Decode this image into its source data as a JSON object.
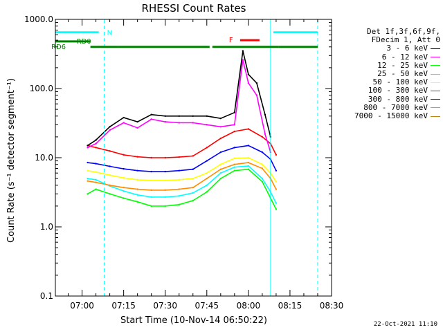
{
  "chart_data": {
    "type": "line",
    "title": "RHESSI Count Rates",
    "xlabel": "Start Time (10-Nov-14 06:50:22)",
    "ylabel": "Count Rate (s⁻¹ detector segment⁻¹)",
    "xlim": [
      "06:50:22",
      "08:30"
    ],
    "ylim": [
      0.1,
      1000.0
    ],
    "yscale": "log",
    "x_ticks": [
      "07:00",
      "07:15",
      "07:30",
      "07:45",
      "08:00",
      "08:15",
      "08:30"
    ],
    "y_ticks": [
      "0.1",
      "1.0",
      "10.0",
      "100.0",
      "1000.0"
    ],
    "legend_position": "top-right",
    "legend_header": [
      "Det 1f,3f,6f,9f,",
      "FDecim 1, Att 0"
    ],
    "series": [
      {
        "name": "3 - 6 keV",
        "color": "#000000",
        "x": [
          "07:02",
          "07:05",
          "07:10",
          "07:15",
          "07:20",
          "07:25",
          "07:30",
          "07:35",
          "07:40",
          "07:45",
          "07:50",
          "07:55",
          "07:58",
          "08:00",
          "08:03",
          "08:06",
          "08:08"
        ],
        "values": [
          15,
          18,
          28,
          38,
          33,
          42,
          40,
          40,
          40,
          40,
          37,
          45,
          350,
          160,
          120,
          42,
          20
        ]
      },
      {
        "name": "6 - 12 keV",
        "color": "#ff00ff",
        "x": [
          "07:02",
          "07:05",
          "07:10",
          "07:15",
          "07:20",
          "07:25",
          "07:30",
          "07:35",
          "07:40",
          "07:45",
          "07:50",
          "07:55",
          "07:58",
          "08:00",
          "08:03",
          "08:06",
          "08:08"
        ],
        "values": [
          14,
          16,
          25,
          32,
          27,
          36,
          33,
          32,
          32,
          30,
          28,
          30,
          260,
          120,
          80,
          22,
          12
        ]
      },
      {
        "name": "12 - 25 keV",
        "color": "#00ff00",
        "x": [
          "07:02",
          "07:05",
          "07:10",
          "07:15",
          "07:20",
          "07:25",
          "07:30",
          "07:35",
          "07:40",
          "07:45",
          "07:50",
          "07:55",
          "08:00",
          "08:05",
          "08:08",
          "08:10"
        ],
        "values": [
          3.0,
          3.5,
          3.0,
          2.6,
          2.3,
          2.0,
          2.0,
          2.1,
          2.4,
          3.2,
          5.0,
          6.5,
          6.8,
          4.5,
          2.6,
          1.8
        ]
      },
      {
        "name": "25 - 50 keV",
        "color": "#00ffff",
        "x": [
          "07:02",
          "07:05",
          "07:10",
          "07:15",
          "07:20",
          "07:25",
          "07:30",
          "07:35",
          "07:40",
          "07:45",
          "07:50",
          "07:55",
          "08:00",
          "08:05",
          "08:08",
          "08:10"
        ],
        "values": [
          5.0,
          4.8,
          3.9,
          3.3,
          2.9,
          2.7,
          2.7,
          2.8,
          3.1,
          4.0,
          6.0,
          7.3,
          7.6,
          5.0,
          3.2,
          2.2
        ]
      },
      {
        "name": "50 - 100 keV",
        "color": "#ffff00",
        "x": [
          "07:02",
          "07:05",
          "07:10",
          "07:15",
          "07:20",
          "07:25",
          "07:30",
          "07:35",
          "07:40",
          "07:45",
          "07:50",
          "07:55",
          "08:00",
          "08:05",
          "08:08",
          "08:10"
        ],
        "values": [
          6.5,
          6.2,
          5.6,
          5.1,
          4.8,
          4.7,
          4.7,
          4.8,
          5.0,
          6.0,
          8.0,
          9.8,
          10.0,
          8.0,
          6.0,
          4.5
        ]
      },
      {
        "name": "100 - 300 keV",
        "color": "#ff0000",
        "x": [
          "07:02",
          "07:05",
          "07:10",
          "07:15",
          "07:20",
          "07:25",
          "07:30",
          "07:35",
          "07:40",
          "07:45",
          "07:50",
          "07:55",
          "08:00",
          "08:05",
          "08:08",
          "08:10"
        ],
        "values": [
          15,
          14,
          12.5,
          11,
          10.3,
          10,
          10,
          10.2,
          10.6,
          14,
          19,
          24,
          26,
          20,
          16,
          11
        ]
      },
      {
        "name": "300 - 800 keV",
        "color": "#0000ff",
        "x": [
          "07:02",
          "07:05",
          "07:10",
          "07:15",
          "07:20",
          "07:25",
          "07:30",
          "07:35",
          "07:40",
          "07:45",
          "07:50",
          "07:55",
          "08:00",
          "08:05",
          "08:08",
          "08:10"
        ],
        "values": [
          8.5,
          8.2,
          7.5,
          6.9,
          6.5,
          6.3,
          6.3,
          6.5,
          6.8,
          9.0,
          12,
          14,
          15,
          12,
          9.5,
          6.5
        ]
      },
      {
        "name": "800 - 7000 keV",
        "color": "#ff8c00",
        "x": [
          "07:02",
          "07:05",
          "07:10",
          "07:15",
          "07:20",
          "07:25",
          "07:30",
          "07:35",
          "07:40",
          "07:45",
          "07:50",
          "07:55",
          "08:00",
          "08:05",
          "08:08",
          "08:10"
        ],
        "values": [
          4.6,
          4.4,
          4.0,
          3.7,
          3.5,
          3.4,
          3.4,
          3.5,
          3.7,
          5.0,
          6.8,
          8.0,
          8.5,
          7.0,
          5.0,
          3.5
        ]
      },
      {
        "name": "7000 - 15000 keV",
        "color": "#b8860b",
        "x": [],
        "values": []
      }
    ],
    "annotations": {
      "N": {
        "label": "N",
        "color": "#00ffff",
        "bars": [
          [
            "06:50:22",
            "07:06"
          ],
          [
            "08:09",
            "08:25"
          ]
        ],
        "dashed_lines": [
          "07:08",
          "08:25"
        ],
        "solid_lines": [
          "06:50:22",
          "08:08"
        ]
      },
      "F": {
        "label": "F",
        "color": "#ff0000",
        "bars": [
          [
            "07:57",
            "08:04"
          ]
        ]
      },
      "RD0": {
        "label": "RD0",
        "color": "#008000",
        "bars": [
          [
            "06:50:22",
            "07:03"
          ]
        ]
      },
      "RD6": {
        "label": "RD6",
        "color": "#008000",
        "bars": [
          [
            "07:03",
            "07:13"
          ],
          [
            "07:13",
            "07:46"
          ],
          [
            "07:47",
            "08:11"
          ],
          [
            "08:11",
            "08:25"
          ]
        ]
      }
    }
  },
  "timestamp": "22-Oct-2021 11:10"
}
